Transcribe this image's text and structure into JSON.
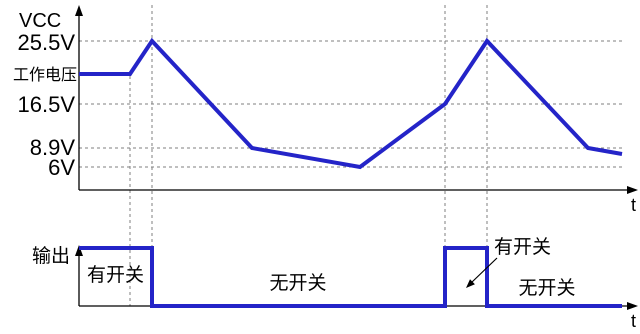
{
  "vcc_panel": {
    "axis_label": "VCC",
    "levels": [
      "25.5V",
      "工作电压",
      "16.5V",
      "8.9V",
      "6V"
    ],
    "time_label": "t"
  },
  "output_panel": {
    "axis_label": "输出",
    "time_label": "t",
    "annotations": [
      "有开关",
      "无开关",
      "有开关",
      "无开关"
    ]
  },
  "colors": {
    "trace": "#2424c8",
    "axis": "#000000",
    "grid": "#7f7f7f",
    "label": "#000000",
    "background": "#ffffff"
  }
}
